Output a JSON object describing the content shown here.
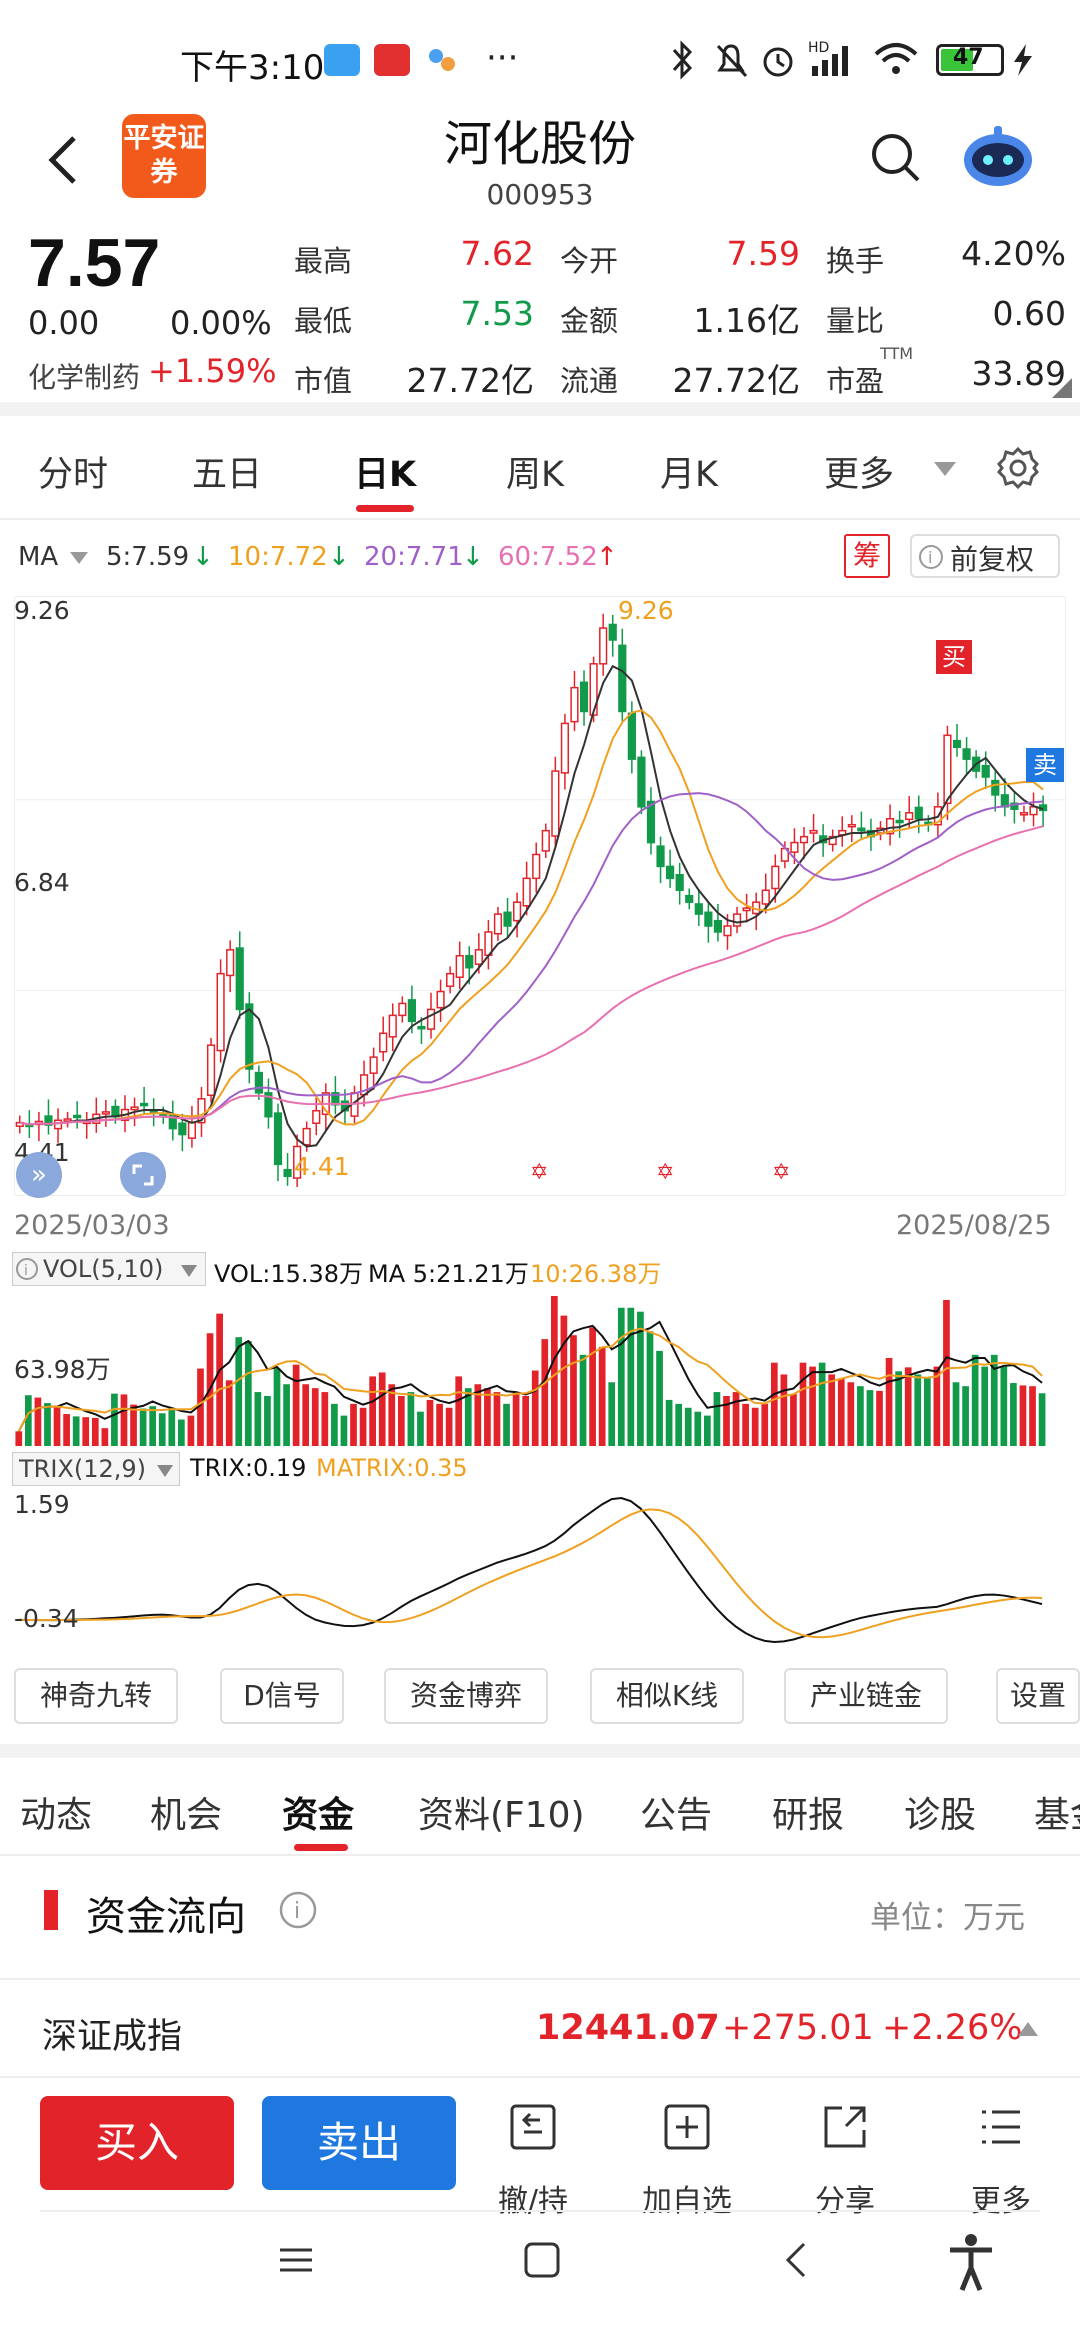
{
  "status_bar": {
    "time": "下午3:10",
    "battery": "47"
  },
  "header": {
    "logo_text": "平安证券",
    "stock_name": "河化股份",
    "stock_code": "000953"
  },
  "quote": {
    "price": "7.57",
    "change": "0.00",
    "change_pct": "0.00%",
    "sector_name": "化学制药",
    "sector_change": "+1.59%",
    "fields": [
      {
        "label": "最高",
        "value": "7.62",
        "color": "#e2232a"
      },
      {
        "label": "今开",
        "value": "7.59",
        "color": "#e2232a"
      },
      {
        "label": "换手",
        "value": "4.20%",
        "color": "#222222"
      },
      {
        "label": "最低",
        "value": "7.53",
        "color": "#109a4a"
      },
      {
        "label": "金额",
        "value": "1.16亿",
        "color": "#222222"
      },
      {
        "label": "量比",
        "value": "0.60",
        "color": "#222222"
      },
      {
        "label": "市值",
        "value": "27.72亿",
        "color": "#222222"
      },
      {
        "label": "流通",
        "value": "27.72亿",
        "color": "#222222"
      },
      {
        "label": "市盈",
        "value": "33.89",
        "color": "#222222"
      }
    ],
    "pe_superscript": "TTM"
  },
  "period_tabs": {
    "items": [
      "分时",
      "五日",
      "日K",
      "周K",
      "月K",
      "更多"
    ],
    "active": "日K"
  },
  "ma_legend": {
    "label": "MA",
    "ma5": "5:7.59",
    "ma10": "10:7.72",
    "ma20": "20:7.71",
    "ma60": "60:7.52",
    "chip_button": "筹",
    "adjust_button": "前复权"
  },
  "colors": {
    "up": "#e2232a",
    "down": "#109a4a",
    "ma5": "#333333",
    "ma10": "#f0a020",
    "ma20": "#a060c8",
    "ma60": "#e870b0",
    "accent": "#e2232a",
    "sell_blue": "#1f78e0"
  },
  "chart_data": [
    {
      "type": "candlestick",
      "y_axis_labels": [
        "9.26",
        "6.84",
        "4.41"
      ],
      "ylim": [
        4.41,
        9.26
      ],
      "x_start": "2025/03/03",
      "x_end": "2025/08/25",
      "high_annotation": "9.26",
      "low_annotation": "4.41",
      "buy_marker": "买",
      "sell_marker": "卖",
      "close": [
        4.95,
        4.92,
        4.96,
        4.93,
        4.97,
        4.98,
        5.0,
        4.96,
        5.02,
        5.04,
        5.0,
        5.06,
        5.08,
        5.1,
        5.04,
        5.0,
        4.9,
        4.85,
        4.95,
        5.15,
        5.6,
        6.2,
        6.4,
        5.9,
        5.4,
        5.2,
        5.0,
        4.6,
        4.5,
        4.75,
        4.9,
        5.05,
        5.2,
        5.1,
        5.05,
        5.2,
        5.35,
        5.5,
        5.7,
        5.85,
        5.95,
        5.8,
        5.75,
        5.9,
        6.05,
        6.2,
        6.35,
        6.25,
        6.4,
        6.55,
        6.7,
        6.6,
        6.8,
        7.0,
        7.2,
        7.4,
        7.9,
        8.3,
        8.6,
        8.4,
        8.8,
        9.1,
        9.0,
        8.4,
        8.0,
        7.6,
        7.3,
        7.1,
        7.0,
        6.9,
        6.8,
        6.7,
        6.6,
        6.55,
        6.6,
        6.7,
        6.75,
        6.8,
        6.9,
        7.1,
        7.25,
        7.3,
        7.35,
        7.4,
        7.3,
        7.35,
        7.4,
        7.45,
        7.4,
        7.35,
        7.42,
        7.5,
        7.48,
        7.55,
        7.5,
        7.45,
        7.6,
        8.2,
        8.1,
        8.0,
        7.9,
        7.85,
        7.7,
        7.6,
        7.58,
        7.55,
        7.6,
        7.57
      ],
      "ma5": "5:7.59",
      "ma10": "10:7.72",
      "ma20": "20:7.71",
      "ma60": "60:7.52"
    },
    {
      "type": "bar",
      "indicator": "VOL(5,10)",
      "readout": "VOL:15.38万",
      "ma5_readout": "MA 5:21.21万",
      "ma10_readout": "10:26.38万",
      "y_axis_label": "63.98万"
    },
    {
      "type": "line",
      "indicator": "TRIX(12,9)",
      "trix_readout": "TRIX:0.19",
      "matrix_readout": "MATRIX:0.35",
      "y_axis_labels": [
        "1.59",
        "-0.34"
      ],
      "ylim": [
        -0.34,
        1.59
      ]
    }
  ],
  "function_buttons": [
    "神奇九转",
    "D信号",
    "资金博弈",
    "相似K线",
    "产业链金",
    "设置"
  ],
  "info_tabs": {
    "items": [
      "动态",
      "机会",
      "资金",
      "资料(F10)",
      "公告",
      "研报",
      "诊股",
      "基金"
    ],
    "active": "资金"
  },
  "fund_flow": {
    "title": "资金流向",
    "unit": "单位：万元"
  },
  "index_row": {
    "name": "深证成指",
    "value": "12441.07",
    "change": "+275.01",
    "change_pct": "+2.26%"
  },
  "actions": {
    "buy": "买入",
    "sell": "卖出",
    "cancel": "撤/持",
    "add_watch": "加自选",
    "share": "分享",
    "more": "更多"
  }
}
